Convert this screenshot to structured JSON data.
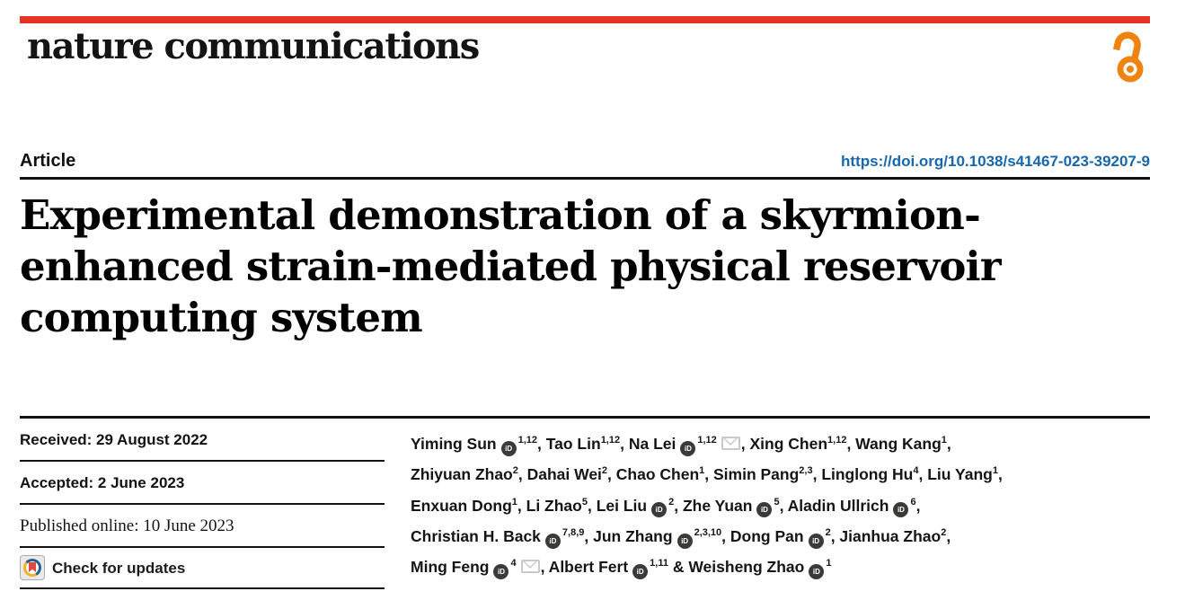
{
  "colors": {
    "accent": "#e63323",
    "doi_link": "#1767ae",
    "open_access": "#ee8312"
  },
  "masthead": {
    "journal": "nature communications",
    "open_access_icon": "open-access-lock-icon"
  },
  "article": {
    "kicker": "Article",
    "doi": "https://doi.org/10.1038/s41467-023-39207-9",
    "title_lines": [
      "Experimental demonstration of a skyrmion-",
      "enhanced strain-mediated physical reservoir",
      "computing system"
    ]
  },
  "timeline": {
    "received": "Received: 29 August 2022",
    "accepted": "Accepted: 2 June 2023",
    "published": "Published online: 10 June 2023",
    "check_updates_label": "Check for updates",
    "check_updates_icon": "crossmark-icon"
  },
  "authors": {
    "orcid_icon_text": "iD",
    "lines": [
      [
        {
          "t": "Yiming Sun"
        },
        {
          "i": "orcid"
        },
        {
          "s": "1,12"
        },
        {
          "t": ", Tao Lin"
        },
        {
          "s": "1,12"
        },
        {
          "t": ", Na Lei"
        },
        {
          "i": "orcid"
        },
        {
          "s": "1,12"
        },
        {
          "i": "envelope"
        },
        {
          "t": ", Xing Chen"
        },
        {
          "s": "1,12"
        },
        {
          "t": ", Wang Kang"
        },
        {
          "s": "1"
        },
        {
          "t": ","
        }
      ],
      [
        {
          "t": "Zhiyuan Zhao"
        },
        {
          "s": "2"
        },
        {
          "t": ", Dahai Wei"
        },
        {
          "s": "2"
        },
        {
          "t": ", Chao Chen"
        },
        {
          "s": "1"
        },
        {
          "t": ", Simin Pang"
        },
        {
          "s": "2,3"
        },
        {
          "t": ", Linglong Hu"
        },
        {
          "s": "4"
        },
        {
          "t": ", Liu Yang"
        },
        {
          "s": "1"
        },
        {
          "t": ","
        }
      ],
      [
        {
          "t": "Enxuan Dong"
        },
        {
          "s": "1"
        },
        {
          "t": ", Li Zhao"
        },
        {
          "s": "5"
        },
        {
          "t": ", Lei Liu"
        },
        {
          "i": "orcid"
        },
        {
          "s": "2"
        },
        {
          "t": ", Zhe Yuan"
        },
        {
          "i": "orcid"
        },
        {
          "s": "5"
        },
        {
          "t": ", Aladin Ullrich"
        },
        {
          "i": "orcid"
        },
        {
          "s": "6"
        },
        {
          "t": ","
        }
      ],
      [
        {
          "t": "Christian H. Back"
        },
        {
          "i": "orcid"
        },
        {
          "s": "7,8,9"
        },
        {
          "t": ", Jun Zhang"
        },
        {
          "i": "orcid"
        },
        {
          "s": "2,3,10"
        },
        {
          "t": ", Dong Pan"
        },
        {
          "i": "orcid"
        },
        {
          "s": "2"
        },
        {
          "t": ", Jianhua Zhao"
        },
        {
          "s": "2"
        },
        {
          "t": ","
        }
      ],
      [
        {
          "t": "Ming Feng"
        },
        {
          "i": "orcid"
        },
        {
          "s": "4"
        },
        {
          "i": "envelope"
        },
        {
          "t": ", Albert Fert"
        },
        {
          "i": "orcid"
        },
        {
          "s": "1,11"
        },
        {
          "t": " & Weisheng Zhao"
        },
        {
          "i": "orcid"
        },
        {
          "s": "1"
        }
      ]
    ]
  }
}
